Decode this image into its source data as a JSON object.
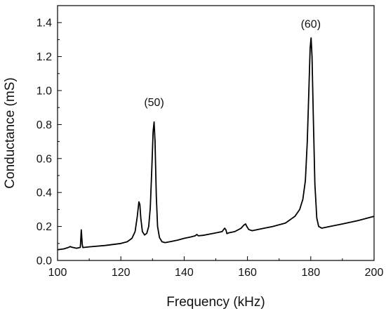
{
  "chart_data": {
    "type": "line",
    "title": "",
    "xlabel": "Frequency (kHz)",
    "ylabel": "Conductance (mS)",
    "xlim": [
      100,
      200
    ],
    "ylim": [
      0.0,
      1.5
    ],
    "grid": false,
    "legend": "none",
    "x_ticks": [
      "100",
      "120",
      "140",
      "160",
      "180",
      "200"
    ],
    "y_ticks": [
      "0.0",
      "0.2",
      "0.4",
      "0.6",
      "0.8",
      "1.0",
      "1.2",
      "1.4"
    ],
    "annotations": [
      {
        "text": "(50)",
        "x": 130.5,
        "y": 0.91
      },
      {
        "text": "(60)",
        "x": 180.0,
        "y": 1.37
      }
    ],
    "line_color": "#000000",
    "series": [
      {
        "x": [
          100,
          102,
          103.5,
          104,
          104.5,
          106,
          107.2,
          107.5,
          107.8,
          108,
          110,
          115,
          120,
          122,
          123.5,
          124.5,
          125.2,
          125.7,
          126,
          126.3,
          126.8,
          127.5,
          128.2,
          128.8,
          129.3,
          129.8,
          130.2,
          130.5,
          130.8,
          131.2,
          131.6,
          132.2,
          133,
          134,
          136,
          138,
          140,
          142,
          143.5,
          144,
          144.5,
          146,
          148,
          150,
          152,
          152.8,
          153.2,
          153.5,
          154,
          156,
          158,
          158.8,
          159.4,
          159.8,
          160.4,
          161.5,
          164,
          168,
          172,
          175,
          176.5,
          177.5,
          178.3,
          178.9,
          179.4,
          179.8,
          180.1,
          180.4,
          180.8,
          181.3,
          181.9,
          182.5,
          183.5,
          186,
          190,
          195,
          200
        ],
        "y": [
          0.063,
          0.068,
          0.077,
          0.082,
          0.078,
          0.072,
          0.077,
          0.18,
          0.095,
          0.076,
          0.08,
          0.088,
          0.1,
          0.11,
          0.13,
          0.17,
          0.26,
          0.345,
          0.33,
          0.25,
          0.17,
          0.15,
          0.16,
          0.2,
          0.31,
          0.55,
          0.76,
          0.815,
          0.7,
          0.38,
          0.2,
          0.135,
          0.11,
          0.105,
          0.112,
          0.12,
          0.13,
          0.138,
          0.145,
          0.153,
          0.145,
          0.148,
          0.155,
          0.162,
          0.17,
          0.19,
          0.18,
          0.158,
          0.162,
          0.17,
          0.19,
          0.207,
          0.215,
          0.2,
          0.182,
          0.175,
          0.185,
          0.2,
          0.22,
          0.26,
          0.3,
          0.36,
          0.47,
          0.7,
          1.0,
          1.25,
          1.31,
          1.2,
          0.85,
          0.45,
          0.25,
          0.2,
          0.19,
          0.2,
          0.215,
          0.235,
          0.26
        ]
      }
    ]
  }
}
